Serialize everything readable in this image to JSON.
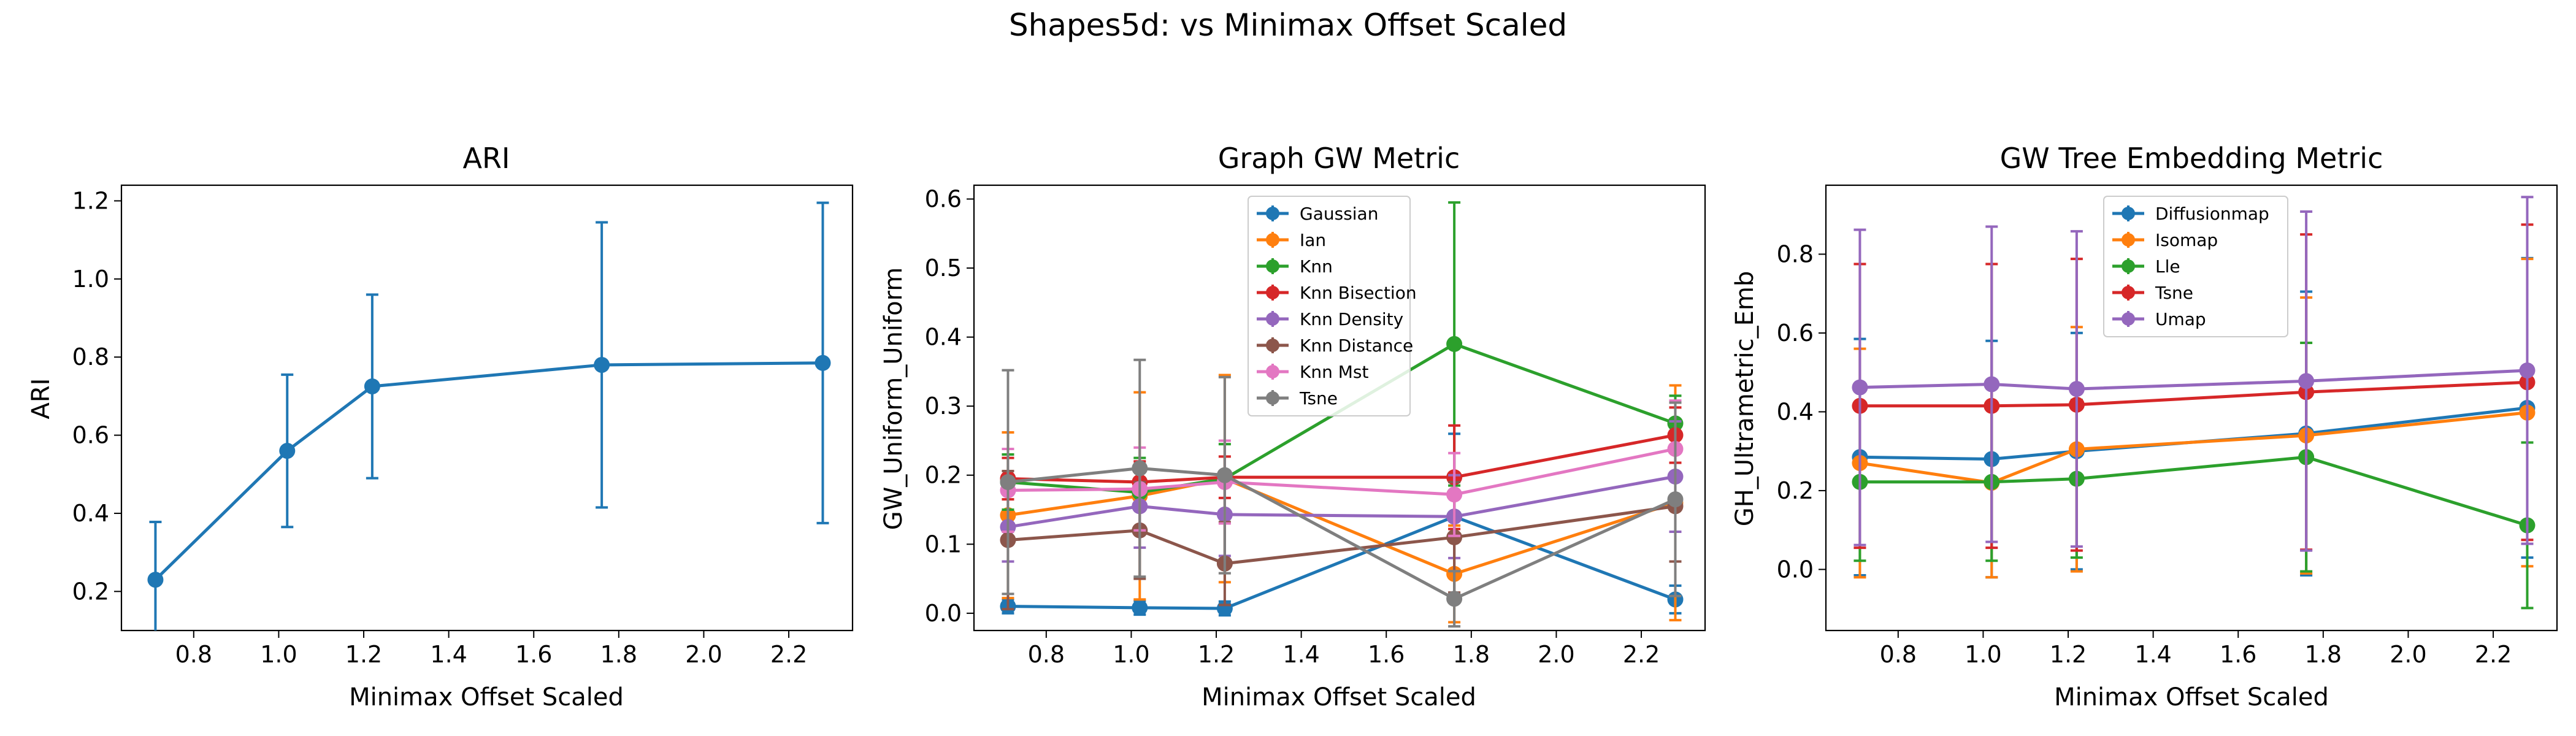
{
  "figure": {
    "title": "Shapes5d: vs Minimax Offset Scaled"
  },
  "colors": {
    "blue": "#1f77b4",
    "orange": "#ff7f0e",
    "green": "#2ca02c",
    "red": "#d62728",
    "purple": "#9467bd",
    "brown": "#8c564b",
    "pink": "#e377c2",
    "gray": "#7f7f7f"
  },
  "chart_data": [
    {
      "type": "line",
      "title": "ARI",
      "xlabel": "Minimax Offset Scaled",
      "ylabel": "ARI",
      "xlim": [
        0.63,
        2.35
      ],
      "ylim": [
        0.1,
        1.24
      ],
      "xticks": [
        0.8,
        1.0,
        1.2,
        1.4,
        1.6,
        1.8,
        2.0,
        2.2
      ],
      "yticks": [
        0.2,
        0.4,
        0.6,
        0.8,
        1.0,
        1.2
      ],
      "x": [
        0.71,
        1.02,
        1.22,
        1.76,
        2.28
      ],
      "series": [
        {
          "color": "#1f77b4",
          "values": [
            0.23,
            0.56,
            0.725,
            0.78,
            0.785
          ],
          "err": [
            0.148,
            0.195,
            0.235,
            0.365,
            0.41
          ]
        }
      ]
    },
    {
      "type": "line",
      "title": "Graph GW Metric",
      "xlabel": "Minimax Offset Scaled",
      "ylabel": "GW_Uniform_Uniform",
      "xlim": [
        0.63,
        2.35
      ],
      "ylim": [
        -0.025,
        0.62
      ],
      "xticks": [
        0.8,
        1.0,
        1.2,
        1.4,
        1.6,
        1.8,
        2.0,
        2.2
      ],
      "yticks": [
        0.0,
        0.1,
        0.2,
        0.3,
        0.4,
        0.5,
        0.6
      ],
      "legend": "upper center",
      "x": [
        0.71,
        1.02,
        1.22,
        1.76,
        2.28
      ],
      "series": [
        {
          "name": "Gaussian",
          "color": "#1f77b4",
          "values": [
            0.01,
            0.008,
            0.007,
            0.14,
            0.02
          ],
          "err": [
            0.01,
            0.01,
            0.01,
            0.12,
            0.02
          ]
        },
        {
          "name": "Ian",
          "color": "#ff7f0e",
          "values": [
            0.142,
            0.17,
            0.195,
            0.057,
            0.16
          ],
          "err": [
            0.12,
            0.15,
            0.15,
            0.07,
            0.17
          ]
        },
        {
          "name": "Knn",
          "color": "#2ca02c",
          "values": [
            0.19,
            0.175,
            0.195,
            0.39,
            0.275
          ],
          "err": [
            0.04,
            0.05,
            0.05,
            0.205,
            0.04
          ]
        },
        {
          "name": "Knn Bisection",
          "color": "#d62728",
          "values": [
            0.195,
            0.19,
            0.197,
            0.197,
            0.258
          ],
          "err": [
            0.03,
            0.03,
            0.03,
            0.075,
            0.04
          ]
        },
        {
          "name": "Knn Density",
          "color": "#9467bd",
          "values": [
            0.125,
            0.155,
            0.143,
            0.14,
            0.198
          ],
          "err": [
            0.05,
            0.06,
            0.06,
            0.06,
            0.08
          ]
        },
        {
          "name": "Knn Distance",
          "color": "#8c564b",
          "values": [
            0.106,
            0.12,
            0.072,
            0.11,
            0.155
          ],
          "err": [
            0.1,
            0.07,
            0.06,
            0.08,
            0.08
          ]
        },
        {
          "name": "Knn Mst",
          "color": "#e377c2",
          "values": [
            0.178,
            0.18,
            0.19,
            0.172,
            0.238
          ],
          "err": [
            0.06,
            0.06,
            0.06,
            0.06,
            0.07
          ]
        },
        {
          "name": "Tsne",
          "color": "#7f7f7f",
          "values": [
            0.19,
            0.21,
            0.2,
            0.021,
            0.165
          ],
          "err": [
            0.162,
            0.157,
            0.142,
            0.04,
            0.14
          ]
        }
      ]
    },
    {
      "type": "line",
      "title": "GW Tree Embedding Metric",
      "xlabel": "Minimax Offset Scaled",
      "ylabel": "GH_Ultrametric_Emb",
      "xlim": [
        0.63,
        2.35
      ],
      "ylim": [
        -0.155,
        0.975
      ],
      "xticks": [
        0.8,
        1.0,
        1.2,
        1.4,
        1.6,
        1.8,
        2.0,
        2.2
      ],
      "yticks": [
        0.0,
        0.2,
        0.4,
        0.6,
        0.8
      ],
      "legend": "upper center",
      "x": [
        0.71,
        1.02,
        1.22,
        1.76,
        2.28
      ],
      "series": [
        {
          "name": "Diffusionmap",
          "color": "#1f77b4",
          "values": [
            0.285,
            0.28,
            0.3,
            0.345,
            0.41
          ],
          "err": [
            0.3,
            0.3,
            0.3,
            0.36,
            0.38
          ]
        },
        {
          "name": "Isomap",
          "color": "#ff7f0e",
          "values": [
            0.27,
            0.22,
            0.305,
            0.34,
            0.398
          ],
          "err": [
            0.29,
            0.24,
            0.31,
            0.35,
            0.39
          ]
        },
        {
          "name": "Lle",
          "color": "#2ca02c",
          "values": [
            0.222,
            0.222,
            0.23,
            0.285,
            0.112
          ],
          "err": [
            0.2,
            0.2,
            0.2,
            0.29,
            0.21
          ]
        },
        {
          "name": "Tsne",
          "color": "#d62728",
          "values": [
            0.415,
            0.415,
            0.418,
            0.45,
            0.475
          ],
          "err": [
            0.36,
            0.36,
            0.37,
            0.4,
            0.4
          ]
        },
        {
          "name": "Umap",
          "color": "#9467bd",
          "values": [
            0.462,
            0.47,
            0.458,
            0.478,
            0.505
          ],
          "err": [
            0.4,
            0.4,
            0.4,
            0.43,
            0.44
          ]
        }
      ]
    }
  ]
}
